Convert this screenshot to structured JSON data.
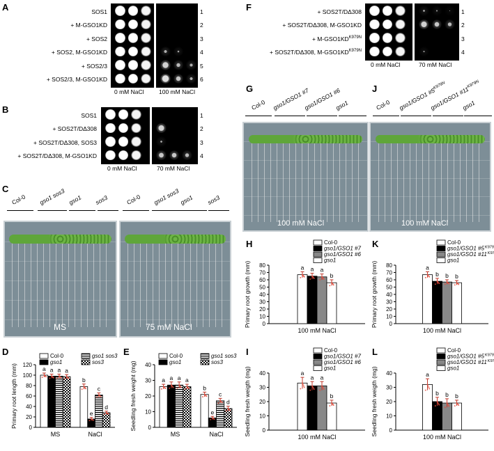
{
  "panels": {
    "A": {
      "letter": "A",
      "rows": [
        "SOS1",
        "+ M-GSO1KD",
        "+ SOS2",
        "+ SOS2, M-GSO1KD",
        "+ SOS2/3",
        "+ SOS2/3, M-GSO1KD"
      ],
      "row_numbers": [
        "1",
        "2",
        "3",
        "4",
        "5",
        "6"
      ],
      "conditions": [
        "0 mM NaCl",
        "100 mM NaCl"
      ]
    },
    "B": {
      "letter": "B",
      "rows": [
        "SOS1",
        "+ SOS2T/DΔ308",
        "+ SOS2T/DΔ308, SOS3",
        "+ SOS2T/DΔ308, M-GSO1KD"
      ],
      "row_numbers": [
        "1",
        "2",
        "3",
        "4"
      ],
      "conditions": [
        "0 mM NaCl",
        "70 mM NaCl"
      ]
    },
    "F": {
      "letter": "F",
      "rows": [
        "+ SOS2T/DΔ308",
        "+ SOS2T/DΔ308, M-GSO1KD",
        "+ M-GSO1KD",
        "+ SOS2T/DΔ308, M-GSO1KD"
      ],
      "row_superscripts": [
        "",
        "",
        "K979N",
        "K979N"
      ],
      "row_numbers": [
        "1",
        "2",
        "3",
        "4"
      ],
      "conditions": [
        "0 mM NaCl",
        "70 mM NaCl"
      ]
    },
    "C": {
      "letter": "C",
      "genotypes": [
        "Col-0",
        "gso1 sos3",
        "gso1",
        "sos3"
      ],
      "captions": [
        "MS",
        "75 mM NaCl"
      ]
    },
    "G": {
      "letter": "G",
      "genotypes": [
        "Col-0",
        "gso1/GSO1 #7",
        "gso1/GSO1 #6",
        "gso1"
      ],
      "caption": "100 mM NaCl"
    },
    "J": {
      "letter": "J",
      "genotypes": [
        "Col-0",
        "gso1/GSO1 #5",
        "gso1/GSO1 #11",
        "gso1"
      ],
      "genotype_superscripts": [
        "",
        "K979N",
        "K979N",
        ""
      ],
      "caption": "100 mM NaCl"
    },
    "D": {
      "letter": "D"
    },
    "E": {
      "letter": "E"
    },
    "H": {
      "letter": "H"
    },
    "I": {
      "letter": "I"
    },
    "K": {
      "letter": "K"
    },
    "L": {
      "letter": "L"
    }
  },
  "chart_data": [
    {
      "id": "D",
      "type": "bar",
      "ylabel": "Primary root length (mm)",
      "ylim": [
        0,
        120
      ],
      "yticks": [
        0,
        20,
        40,
        60,
        80,
        100,
        120
      ],
      "categories": [
        "MS",
        "NaCl"
      ],
      "series": [
        {
          "name": "Col-0",
          "values": [
            100,
            78
          ],
          "errors": [
            4,
            5
          ],
          "letters": [
            "a",
            "b"
          ],
          "pattern": "white"
        },
        {
          "name": "gso1",
          "values": [
            98,
            16
          ],
          "errors": [
            4,
            3
          ],
          "letters": [
            "a",
            "e"
          ],
          "pattern": "black"
        },
        {
          "name": "gso1 sos3",
          "values": [
            98,
            62
          ],
          "errors": [
            4,
            4
          ],
          "letters": [
            "a",
            "c"
          ],
          "pattern": "hlines"
        },
        {
          "name": "sos3",
          "values": [
            97,
            28
          ],
          "errors": [
            4,
            3
          ],
          "letters": [
            "a",
            "d"
          ],
          "pattern": "checker"
        }
      ]
    },
    {
      "id": "E",
      "type": "bar",
      "ylabel": "Seedling fresh weight (mg)",
      "ylim": [
        0,
        40
      ],
      "yticks": [
        0,
        10,
        20,
        30,
        40
      ],
      "categories": [
        "MS",
        "NaCl"
      ],
      "series": [
        {
          "name": "Col-0",
          "values": [
            26,
            21
          ],
          "errors": [
            1.5,
            1.5
          ],
          "letters": [
            "a",
            "b"
          ],
          "pattern": "white"
        },
        {
          "name": "gso1",
          "values": [
            27,
            6
          ],
          "errors": [
            2,
            1
          ],
          "letters": [
            "a",
            "e"
          ],
          "pattern": "black"
        },
        {
          "name": "gso1 sos3",
          "values": [
            27,
            17
          ],
          "errors": [
            2,
            1.5
          ],
          "letters": [
            "a",
            "c"
          ],
          "pattern": "hlines"
        },
        {
          "name": "sos3",
          "values": [
            26,
            12
          ],
          "errors": [
            1.5,
            1.5
          ],
          "letters": [
            "a",
            "d"
          ],
          "pattern": "checker"
        }
      ]
    },
    {
      "id": "H",
      "type": "bar",
      "ylabel": "Primary root growth (mm)",
      "ylim": [
        0,
        80
      ],
      "yticks": [
        0,
        10,
        20,
        30,
        40,
        50,
        60,
        70,
        80
      ],
      "categories": [
        "100 mM NaCl"
      ],
      "series": [
        {
          "name": "Col-0",
          "values": [
            67
          ],
          "errors": [
            4
          ],
          "letters": [
            "a"
          ],
          "pattern": "white"
        },
        {
          "name": "gso1/GSO1 #7",
          "values": [
            65
          ],
          "errors": [
            4
          ],
          "letters": [
            "a"
          ],
          "pattern": "black"
        },
        {
          "name": "gso1/GSO1 #6",
          "values": [
            64
          ],
          "errors": [
            4
          ],
          "letters": [
            "a"
          ],
          "pattern": "gray"
        },
        {
          "name": "gso1",
          "values": [
            56
          ],
          "errors": [
            4
          ],
          "letters": [
            "b"
          ],
          "pattern": "white"
        }
      ]
    },
    {
      "id": "I",
      "type": "bar",
      "ylabel": "Seedling fresh weigth (mg)",
      "ylim": [
        0,
        40
      ],
      "yticks": [
        0,
        10,
        20,
        30,
        40
      ],
      "categories": [
        "100 mM NaCl"
      ],
      "series": [
        {
          "name": "Col-0",
          "values": [
            33
          ],
          "errors": [
            4
          ],
          "letters": [
            "a"
          ],
          "pattern": "white"
        },
        {
          "name": "gso1/GSO1 #7",
          "values": [
            31
          ],
          "errors": [
            3
          ],
          "letters": [
            "a"
          ],
          "pattern": "black"
        },
        {
          "name": "gso1/GSO1 #6",
          "values": [
            31
          ],
          "errors": [
            3
          ],
          "letters": [
            "a"
          ],
          "pattern": "gray"
        },
        {
          "name": "gso1",
          "values": [
            19
          ],
          "errors": [
            2
          ],
          "letters": [
            "b"
          ],
          "pattern": "white"
        }
      ]
    },
    {
      "id": "K",
      "type": "bar",
      "ylabel": "Primary root growth (mm)",
      "ylim": [
        0,
        80
      ],
      "yticks": [
        0,
        10,
        20,
        30,
        40,
        50,
        60,
        70,
        80
      ],
      "categories": [
        "100 mM NaCl"
      ],
      "series": [
        {
          "name": "Col-0",
          "values": [
            67
          ],
          "errors": [
            4
          ],
          "letters": [
            "a"
          ],
          "pattern": "white"
        },
        {
          "name": "gso1/GSO1 #5",
          "superscript": "K979N",
          "values": [
            58
          ],
          "errors": [
            4
          ],
          "letters": [
            "b"
          ],
          "pattern": "black"
        },
        {
          "name": "gso1/GSO1 #11",
          "superscript": "K979N",
          "values": [
            57
          ],
          "errors": [
            3
          ],
          "letters": [
            "b"
          ],
          "pattern": "gray"
        },
        {
          "name": "gso1",
          "values": [
            56
          ],
          "errors": [
            3
          ],
          "letters": [
            "b"
          ],
          "pattern": "white"
        }
      ]
    },
    {
      "id": "L",
      "type": "bar",
      "ylabel": "Seedling fresh weigth (mg)",
      "ylim": [
        0,
        40
      ],
      "yticks": [
        0,
        10,
        20,
        30,
        40
      ],
      "categories": [
        "100 mM NaCl"
      ],
      "series": [
        {
          "name": "Col-0",
          "values": [
            32
          ],
          "errors": [
            4
          ],
          "letters": [
            "a"
          ],
          "pattern": "white"
        },
        {
          "name": "gso1/GSO1 #5",
          "superscript": "K979N",
          "values": [
            20
          ],
          "errors": [
            3
          ],
          "letters": [
            "b"
          ],
          "pattern": "black"
        },
        {
          "name": "gso1/GSO1 #11",
          "superscript": "K979N",
          "values": [
            19
          ],
          "errors": [
            3
          ],
          "letters": [
            "b"
          ],
          "pattern": "gray"
        },
        {
          "name": "gso1",
          "values": [
            19
          ],
          "errors": [
            2
          ],
          "letters": [
            "b"
          ],
          "pattern": "white"
        }
      ]
    }
  ]
}
